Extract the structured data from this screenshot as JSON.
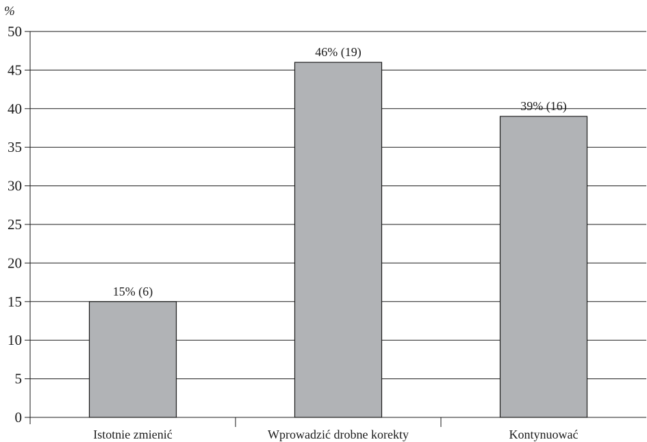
{
  "chart_data": {
    "type": "bar",
    "unit_label": "%",
    "categories": [
      "Istotnie zmienić",
      "Wprowadzić drobne korekty",
      "Kontynuować"
    ],
    "values": [
      15,
      46,
      39
    ],
    "data_labels": [
      "15% (6)",
      "46% (19)",
      "39% (16)"
    ],
    "counts": [
      6,
      19,
      16
    ],
    "ylim": [
      0,
      50
    ],
    "yticks": [
      0,
      5,
      10,
      15,
      20,
      25,
      30,
      35,
      40,
      45,
      50
    ],
    "grid": true,
    "legend": "none",
    "colors": {
      "bar_fill": "#b1b3b6",
      "bar_stroke": "#1a1a1a",
      "grid": "#1a1a1a",
      "axis": "#1a1a1a"
    }
  }
}
